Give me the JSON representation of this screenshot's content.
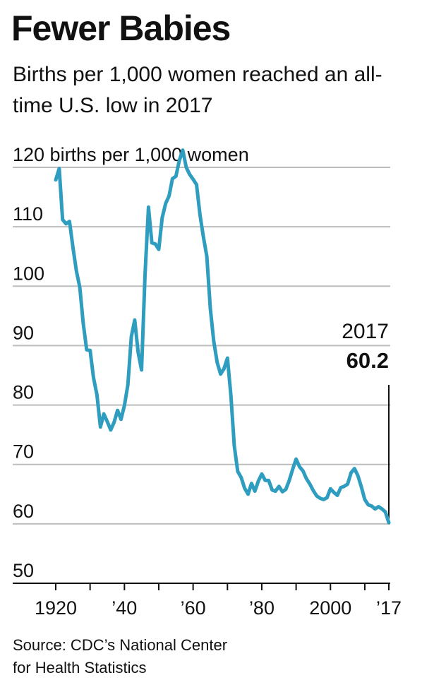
{
  "chart_data": {
    "type": "line",
    "title": "Fewer Babies",
    "subtitle": "Births per 1,000 women reached an all-time U.S. low in 2017",
    "ylabel": "births per 1,000 women",
    "y_ticks": [
      50,
      60,
      70,
      80,
      90,
      100,
      110,
      120
    ],
    "y_tick_labels": [
      "50",
      "60",
      "70",
      "80",
      "90",
      "100",
      "110",
      "120 births per 1,000 women"
    ],
    "x_ticks": [
      1920,
      1930,
      1940,
      1950,
      1960,
      1970,
      1980,
      1990,
      2000,
      2010,
      2017
    ],
    "x_tick_labels": [
      "1920",
      "",
      "’40",
      "",
      "’60",
      "",
      "’80",
      "",
      "2000",
      "",
      "’17"
    ],
    "xlim": [
      1920,
      2017
    ],
    "ylim": [
      50,
      120
    ],
    "grid": true,
    "line_color": "#2e9dbf",
    "annotation": {
      "year_label": "2017",
      "value_label": "60.2",
      "x": 2017,
      "y": 60.2
    },
    "series": [
      {
        "x": [
          1920,
          1921,
          1922,
          1923,
          1924,
          1925,
          1926,
          1927,
          1928,
          1929,
          1930,
          1931,
          1932,
          1933,
          1934,
          1935,
          1936,
          1937,
          1938,
          1939,
          1940,
          1941,
          1942,
          1943,
          1944,
          1945,
          1946,
          1947,
          1948,
          1949,
          1950,
          1951,
          1952,
          1953,
          1954,
          1955,
          1956,
          1957,
          1958,
          1959,
          1960,
          1961,
          1962,
          1963,
          1964,
          1965,
          1966,
          1967,
          1968,
          1969,
          1970,
          1971,
          1972,
          1973,
          1974,
          1975,
          1976,
          1977,
          1978,
          1979,
          1980,
          1981,
          1982,
          1983,
          1984,
          1985,
          1986,
          1987,
          1988,
          1989,
          1990,
          1991,
          1992,
          1993,
          1994,
          1995,
          1996,
          1997,
          1998,
          1999,
          2000,
          2001,
          2002,
          2003,
          2004,
          2005,
          2006,
          2007,
          2008,
          2009,
          2010,
          2011,
          2012,
          2013,
          2014,
          2015,
          2016,
          2017
        ],
        "y": [
          117.9,
          119.8,
          111.2,
          110.5,
          110.9,
          106.6,
          102.6,
          99.8,
          93.8,
          89.3,
          89.2,
          84.6,
          81.7,
          76.3,
          78.5,
          77.2,
          75.8,
          77.1,
          79.1,
          77.6,
          79.9,
          83.4,
          91.5,
          94.3,
          88.8,
          85.9,
          101.9,
          113.3,
          107.3,
          107.1,
          106.2,
          111.5,
          113.9,
          115.2,
          118.1,
          118.5,
          121.2,
          122.9,
          120.0,
          118.8,
          118.0,
          117.1,
          112.0,
          108.3,
          105.0,
          96.3,
          90.8,
          87.2,
          85.2,
          86.1,
          87.9,
          81.6,
          73.1,
          68.8,
          67.8,
          66.0,
          65.0,
          66.8,
          65.5,
          67.2,
          68.4,
          67.3,
          67.3,
          65.7,
          65.5,
          66.3,
          65.4,
          65.8,
          67.3,
          69.2,
          70.9,
          69.6,
          68.9,
          67.6,
          66.7,
          65.6,
          64.7,
          64.3,
          64.1,
          64.4,
          65.9,
          65.3,
          64.8,
          66.1,
          66.3,
          66.7,
          68.6,
          69.3,
          68.1,
          66.2,
          64.1,
          63.2,
          63.0,
          62.5,
          62.9,
          62.5,
          62.0,
          60.2
        ]
      }
    ]
  },
  "source_line1": "Source: CDC’s National Center",
  "source_line2": "for Health Statistics"
}
